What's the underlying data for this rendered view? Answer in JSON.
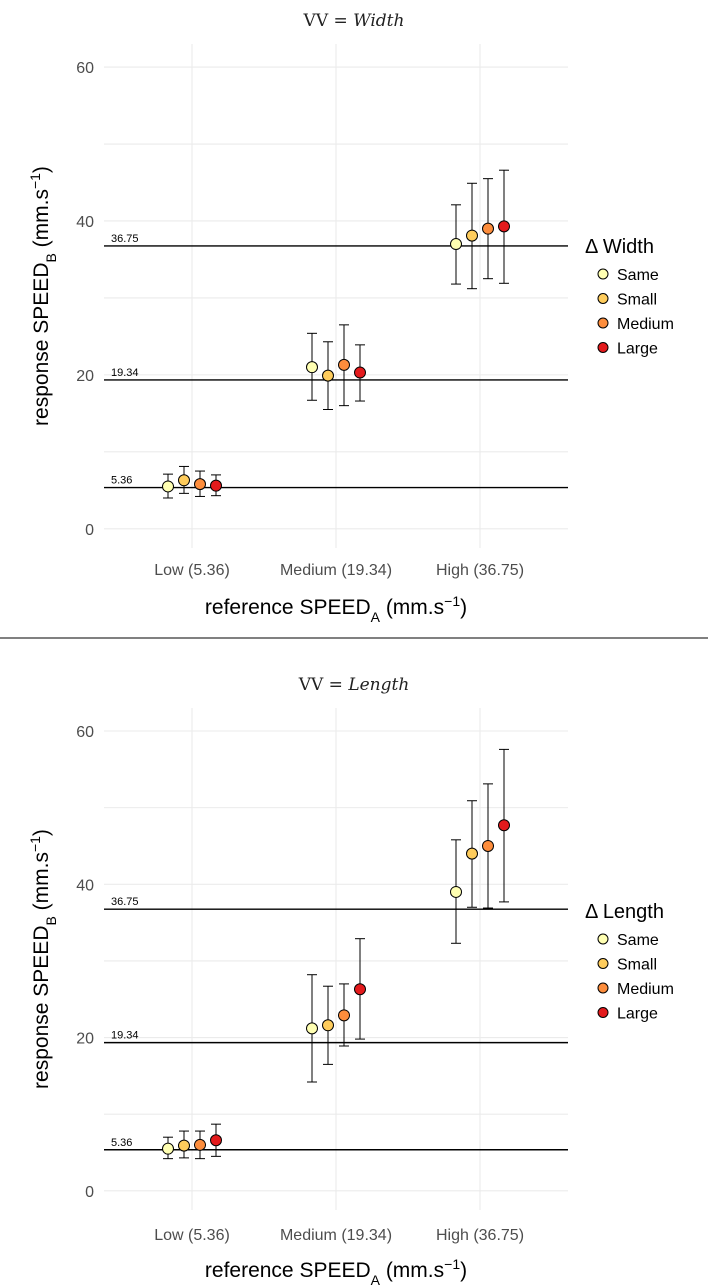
{
  "colors": {
    "Same": "#ffffb2",
    "Small": "#fecc5c",
    "Medium": "#fd8d3c",
    "Large": "#e31a1c"
  },
  "chart_data": [
    {
      "type": "scatter",
      "title_prefix": "VV = ",
      "title_var": "Width",
      "xlabel_main": "reference SPEED",
      "xlabel_sub": "A",
      "xlabel_unit": " (mm.s",
      "xlabel_sup": "−1",
      "xlabel_close": ")",
      "ylabel_main": "response SPEED",
      "ylabel_sub": "B",
      "ylabel_unit": " (mm.s",
      "ylabel_sup": "−1",
      "ylabel_close": ")",
      "categories": [
        "Low (5.36)",
        "Medium (19.34)",
        "High (36.75)"
      ],
      "yticks": [
        "0",
        "20",
        "40",
        "60"
      ],
      "ylim": [
        -2.5,
        63
      ],
      "reference_lines": [
        {
          "value": 5.36,
          "label": "5.36"
        },
        {
          "value": 19.34,
          "label": "19.34"
        },
        {
          "value": 36.75,
          "label": "36.75"
        }
      ],
      "legend_title": "Δ Width",
      "legend_position": "right",
      "series": [
        {
          "name": "Same",
          "values": [
            5.5,
            21.0,
            37.0
          ],
          "lower": [
            4.0,
            16.7,
            31.8
          ],
          "upper": [
            7.1,
            25.4,
            42.1
          ]
        },
        {
          "name": "Small",
          "values": [
            6.3,
            19.9,
            38.1
          ],
          "lower": [
            4.6,
            15.5,
            31.2
          ],
          "upper": [
            8.1,
            24.3,
            44.9
          ]
        },
        {
          "name": "Medium",
          "values": [
            5.8,
            21.3,
            39.0
          ],
          "lower": [
            4.2,
            16.0,
            32.5
          ],
          "upper": [
            7.5,
            26.5,
            45.5
          ]
        },
        {
          "name": "Large",
          "values": [
            5.6,
            20.3,
            39.3
          ],
          "lower": [
            4.3,
            16.6,
            31.9
          ],
          "upper": [
            7.0,
            23.9,
            46.6
          ]
        }
      ]
    },
    {
      "type": "scatter",
      "title_prefix": "VV = ",
      "title_var": "Length",
      "xlabel_main": "reference SPEED",
      "xlabel_sub": "A",
      "xlabel_unit": " (mm.s",
      "xlabel_sup": "−1",
      "xlabel_close": ")",
      "ylabel_main": "response SPEED",
      "ylabel_sub": "B",
      "ylabel_unit": " (mm.s",
      "ylabel_sup": "−1",
      "ylabel_close": ")",
      "categories": [
        "Low (5.36)",
        "Medium (19.34)",
        "High (36.75)"
      ],
      "yticks": [
        "0",
        "20",
        "40",
        "60"
      ],
      "ylim": [
        -2.5,
        63
      ],
      "reference_lines": [
        {
          "value": 5.36,
          "label": "5.36"
        },
        {
          "value": 19.34,
          "label": "19.34"
        },
        {
          "value": 36.75,
          "label": "36.75"
        }
      ],
      "legend_title": "Δ Length",
      "legend_position": "right",
      "series": [
        {
          "name": "Same",
          "values": [
            5.5,
            21.2,
            39.0
          ],
          "lower": [
            4.2,
            14.2,
            32.3
          ],
          "upper": [
            7.0,
            28.2,
            45.8
          ]
        },
        {
          "name": "Small",
          "values": [
            5.9,
            21.6,
            44.0
          ],
          "lower": [
            4.3,
            16.5,
            37.0
          ],
          "upper": [
            7.8,
            26.7,
            50.9
          ]
        },
        {
          "name": "Medium",
          "values": [
            6.0,
            22.9,
            45.0
          ],
          "lower": [
            4.2,
            18.9,
            36.9
          ],
          "upper": [
            7.8,
            27.0,
            53.1
          ]
        },
        {
          "name": "Large",
          "values": [
            6.6,
            26.3,
            47.7
          ],
          "lower": [
            4.5,
            19.8,
            37.7
          ],
          "upper": [
            8.7,
            32.9,
            57.6
          ]
        }
      ]
    }
  ]
}
